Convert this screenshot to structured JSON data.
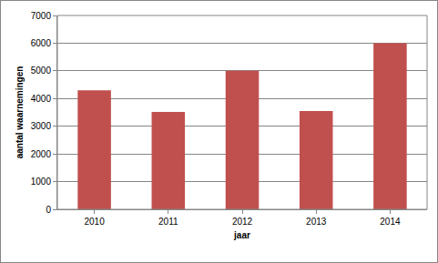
{
  "chart_data": {
    "type": "bar",
    "x_label": "jaar",
    "y_label": "aantal waarnemingen",
    "categories": [
      "2010",
      "2011",
      "2012",
      "2013",
      "2014"
    ],
    "values": [
      4300,
      3520,
      5000,
      3550,
      6000
    ],
    "color": "#c0504d",
    "ylim": [
      0,
      7000
    ],
    "yticks": [
      0,
      1000,
      2000,
      3000,
      4000,
      5000,
      6000,
      7000
    ],
    "grid": true
  }
}
